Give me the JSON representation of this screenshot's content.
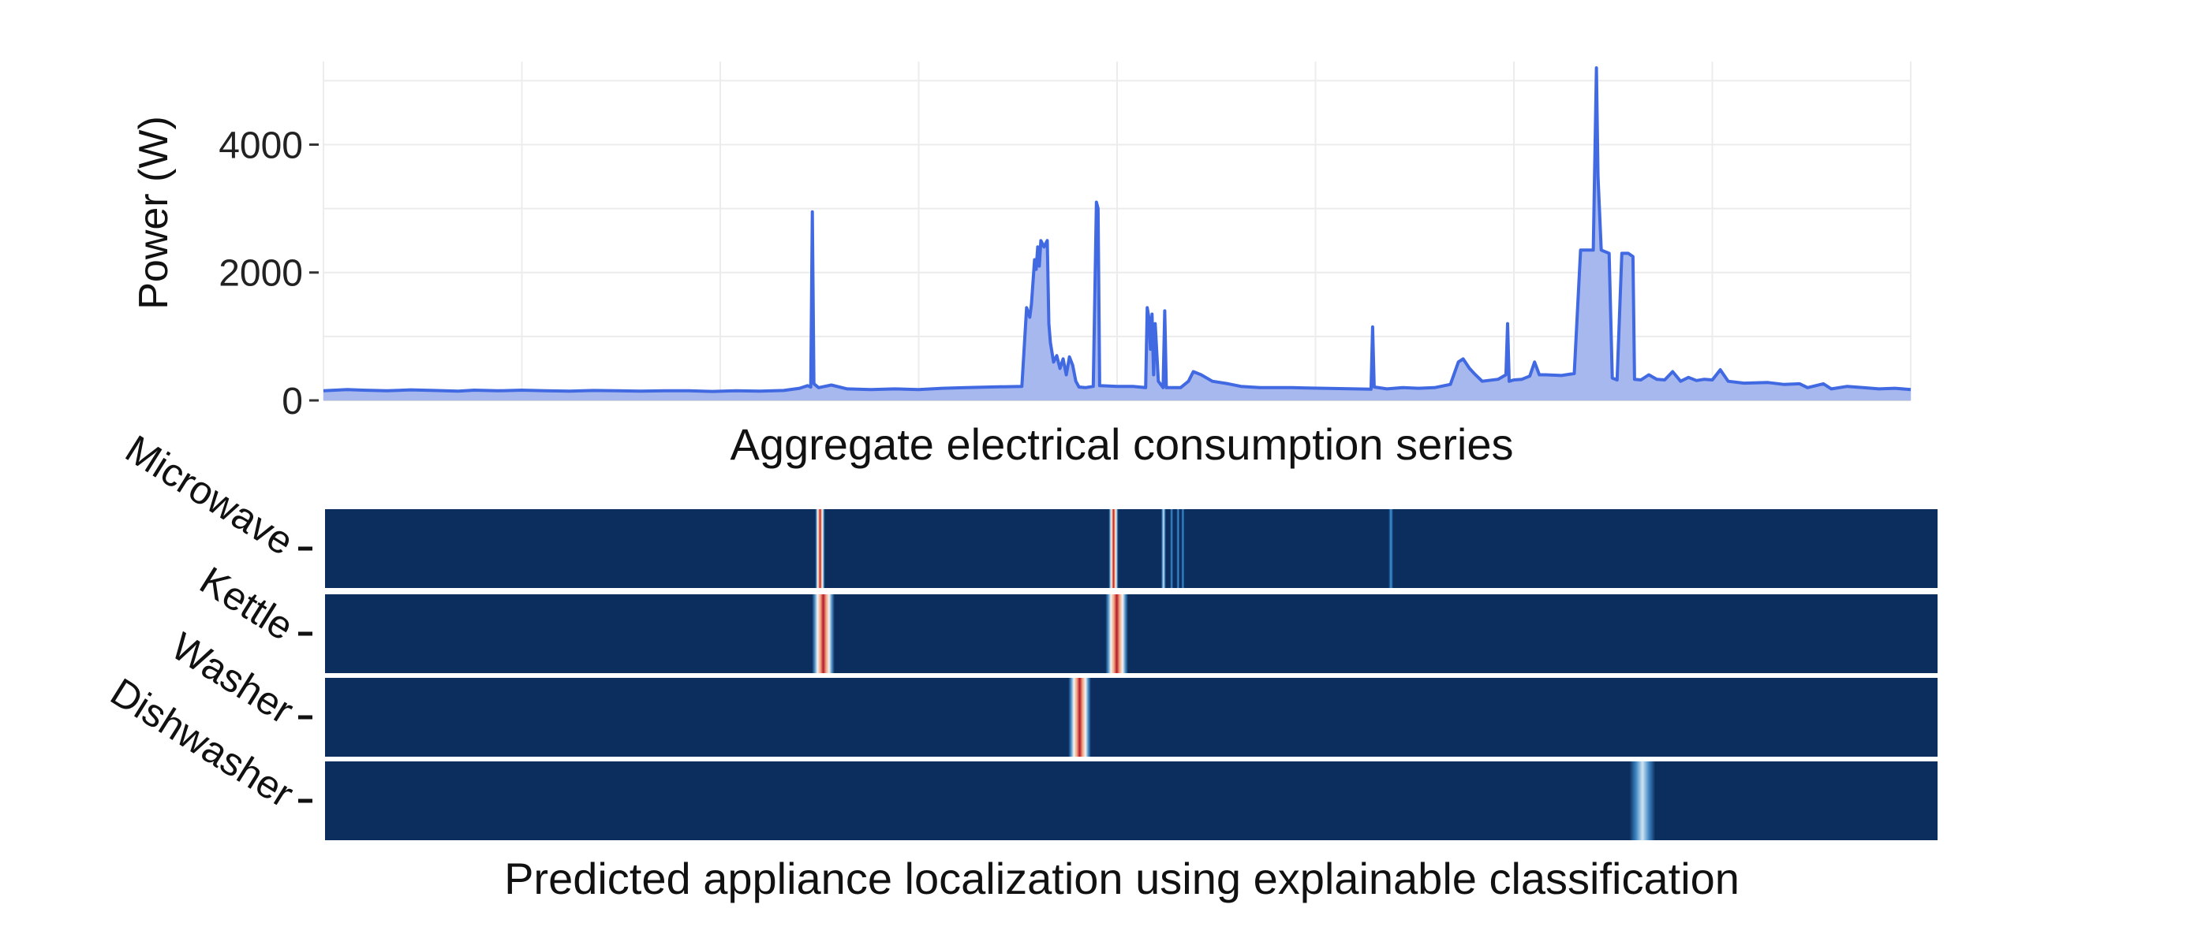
{
  "chart_data": [
    {
      "type": "area",
      "ylabel": "Power (W)",
      "xlabel": "",
      "caption": "Aggregate electrical consumption series",
      "ylim": [
        0,
        5300
      ],
      "yticks": [
        0,
        2000,
        4000
      ],
      "ytick_labels": [
        "0",
        "2000",
        "4000"
      ],
      "xlim": [
        0,
        1000
      ],
      "grid": true,
      "series": [
        {
          "color": "#4169E1",
          "fill": "#A7B8EE",
          "points": [
            [
              0,
              150
            ],
            [
              15,
              170
            ],
            [
              25,
              160
            ],
            [
              40,
              150
            ],
            [
              55,
              165
            ],
            [
              70,
              155
            ],
            [
              85,
              145
            ],
            [
              95,
              160
            ],
            [
              110,
              150
            ],
            [
              125,
              160
            ],
            [
              140,
              150
            ],
            [
              155,
              145
            ],
            [
              170,
              155
            ],
            [
              185,
              150
            ],
            [
              200,
              145
            ],
            [
              215,
              150
            ],
            [
              230,
              150
            ],
            [
              245,
              140
            ],
            [
              260,
              150
            ],
            [
              275,
              145
            ],
            [
              290,
              155
            ],
            [
              300,
              190
            ],
            [
              305,
              230
            ],
            [
              307,
              210
            ],
            [
              308,
              2950
            ],
            [
              309,
              260
            ],
            [
              312,
              200
            ],
            [
              320,
              240
            ],
            [
              330,
              180
            ],
            [
              345,
              170
            ],
            [
              360,
              180
            ],
            [
              375,
              170
            ],
            [
              390,
              190
            ],
            [
              405,
              200
            ],
            [
              420,
              210
            ],
            [
              440,
              220
            ],
            [
              443,
              1450
            ],
            [
              445,
              1300
            ],
            [
              446,
              1500
            ],
            [
              448,
              2200
            ],
            [
              449,
              2050
            ],
            [
              450,
              2400
            ],
            [
              451,
              2100
            ],
            [
              452,
              2500
            ],
            [
              454,
              2400
            ],
            [
              456,
              2500
            ],
            [
              457,
              1200
            ],
            [
              458,
              900
            ],
            [
              460,
              600
            ],
            [
              462,
              700
            ],
            [
              464,
              500
            ],
            [
              466,
              650
            ],
            [
              468,
              400
            ],
            [
              470,
              680
            ],
            [
              472,
              550
            ],
            [
              474,
              300
            ],
            [
              476,
              210
            ],
            [
              480,
              200
            ],
            [
              485,
              220
            ],
            [
              487,
              3100
            ],
            [
              488,
              3000
            ],
            [
              489,
              230
            ],
            [
              500,
              220
            ],
            [
              510,
              220
            ],
            [
              518,
              200
            ],
            [
              519,
              1450
            ],
            [
              520,
              1300
            ],
            [
              521,
              800
            ],
            [
              522,
              1350
            ],
            [
              523,
              400
            ],
            [
              524,
              1200
            ],
            [
              526,
              300
            ],
            [
              529,
              200
            ],
            [
              530,
              1400
            ],
            [
              531,
              200
            ],
            [
              540,
              200
            ],
            [
              545,
              300
            ],
            [
              548,
              450
            ],
            [
              553,
              400
            ],
            [
              560,
              300
            ],
            [
              570,
              260
            ],
            [
              578,
              220
            ],
            [
              590,
              200
            ],
            [
              610,
              200
            ],
            [
              630,
              190
            ],
            [
              650,
              180
            ],
            [
              660,
              175
            ],
            [
              661,
              1150
            ],
            [
              662,
              210
            ],
            [
              670,
              180
            ],
            [
              680,
              200
            ],
            [
              690,
              190
            ],
            [
              700,
              200
            ],
            [
              710,
              250
            ],
            [
              715,
              600
            ],
            [
              718,
              650
            ],
            [
              722,
              500
            ],
            [
              725,
              420
            ],
            [
              730,
              300
            ],
            [
              740,
              330
            ],
            [
              745,
              400
            ],
            [
              746,
              1200
            ],
            [
              747,
              300
            ],
            [
              750,
              320
            ],
            [
              755,
              330
            ],
            [
              760,
              380
            ],
            [
              763,
              600
            ],
            [
              766,
              400
            ],
            [
              770,
              400
            ],
            [
              780,
              390
            ],
            [
              788,
              420
            ],
            [
              792,
              2350
            ],
            [
              800,
              2350
            ],
            [
              802,
              5200
            ],
            [
              803,
              3500
            ],
            [
              805,
              2350
            ],
            [
              810,
              2300
            ],
            [
              812,
              350
            ],
            [
              815,
              320
            ],
            [
              818,
              2300
            ],
            [
              822,
              2300
            ],
            [
              825,
              2250
            ],
            [
              826,
              330
            ],
            [
              830,
              320
            ],
            [
              835,
              400
            ],
            [
              840,
              330
            ],
            [
              845,
              320
            ],
            [
              850,
              450
            ],
            [
              855,
              300
            ],
            [
              860,
              360
            ],
            [
              865,
              310
            ],
            [
              870,
              330
            ],
            [
              875,
              320
            ],
            [
              880,
              480
            ],
            [
              885,
              300
            ],
            [
              895,
              270
            ],
            [
              910,
              280
            ],
            [
              920,
              250
            ],
            [
              930,
              260
            ],
            [
              935,
              200
            ],
            [
              945,
              260
            ],
            [
              950,
              180
            ],
            [
              960,
              220
            ],
            [
              970,
              200
            ],
            [
              980,
              180
            ],
            [
              990,
              190
            ],
            [
              1000,
              170
            ]
          ]
        }
      ]
    },
    {
      "type": "heatmap",
      "caption": "Predicted appliance localization using explainable classification",
      "rows": [
        "Microwave",
        "Kettle",
        "Washer",
        "Dishwasher"
      ],
      "xlim": [
        0,
        1000
      ],
      "background": "#0B2E5E",
      "rows_data": [
        {
          "name": "Microwave",
          "activations": [
            {
              "x": 307,
              "w": 6,
              "intensity": 0.95
            },
            {
              "x": 489,
              "w": 6,
              "intensity": 1.0
            },
            {
              "x": 520,
              "w": 3,
              "intensity": 0.45
            },
            {
              "x": 525,
              "w": 2,
              "intensity": 0.35
            },
            {
              "x": 529,
              "w": 2,
              "intensity": 0.3
            },
            {
              "x": 532,
              "w": 2,
              "intensity": 0.3
            },
            {
              "x": 661,
              "w": 3,
              "intensity": 0.3
            }
          ]
        },
        {
          "name": "Kettle",
          "activations": [
            {
              "x": 309,
              "w": 14,
              "intensity": 0.85
            },
            {
              "x": 491,
              "w": 14,
              "intensity": 1.0
            }
          ]
        },
        {
          "name": "Washer",
          "activations": [
            {
              "x": 468,
              "w": 14,
              "intensity": 1.0
            }
          ]
        },
        {
          "name": "Dishwasher",
          "activations": [
            {
              "x": 817,
              "w": 16,
              "intensity": 0.4
            }
          ]
        }
      ]
    }
  ]
}
